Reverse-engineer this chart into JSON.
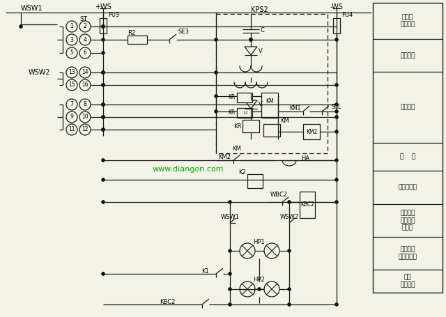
{
  "bg_color": "#f2f2e8",
  "line_color": "#1a1a1a",
  "watermark_color": "#00aa00",
  "watermark": "www.diangon.com",
  "right_labels": [
    "小母线\n及燕断器",
    "试验按鈕",
    "解除按鈕",
    "警    钓",
    "监察维电器",
    "控制回路\n断线中间\n维电器",
    "事故信号\n燕断器燕断",
    "控制\n回路断线"
  ],
  "row_tops": [
    4,
    56,
    103,
    205,
    245,
    293,
    340,
    387
  ],
  "row_bots": [
    56,
    103,
    205,
    245,
    293,
    340,
    387,
    420
  ]
}
